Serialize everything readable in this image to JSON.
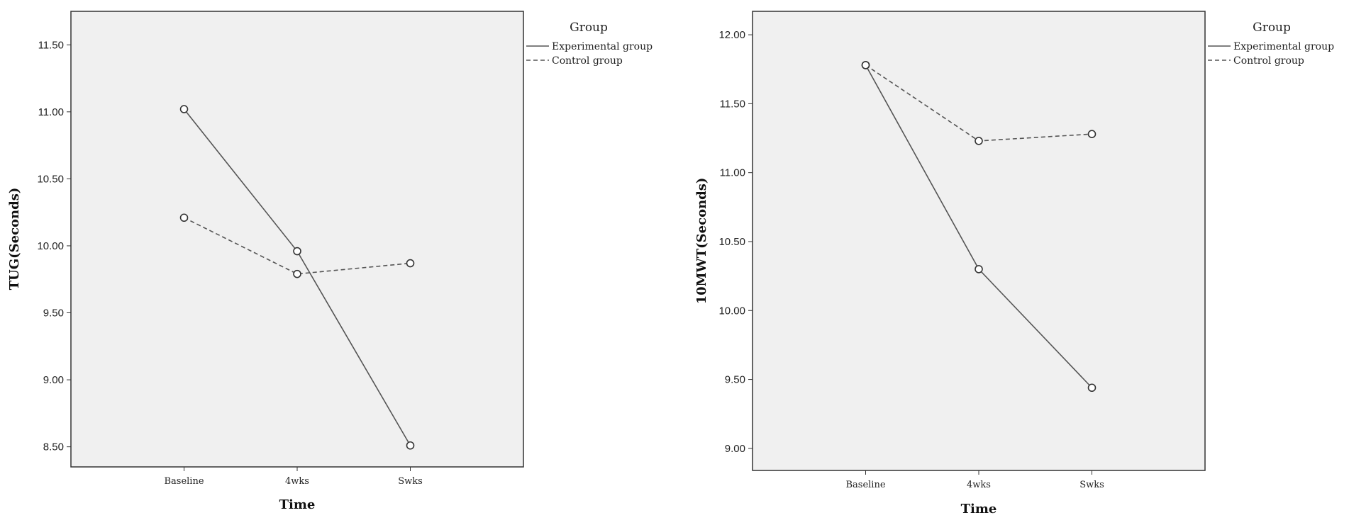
{
  "chart_data": [
    {
      "type": "line",
      "ylabel": "TUG(Seconds)",
      "xlabel": "Time",
      "categories": [
        "Baseline",
        "4wks",
        "Swks"
      ],
      "ylim": [
        8.35,
        11.75
      ],
      "yticks": [
        "8.50",
        "9.00",
        "9.50",
        "10.00",
        "10.50",
        "11.00",
        "11.50"
      ],
      "legend": {
        "title": "Group",
        "position": "top-right, outside plot"
      },
      "grid": false,
      "series": [
        {
          "name": "Experimental group",
          "style": "solid",
          "values": [
            11.02,
            9.96,
            8.51
          ]
        },
        {
          "name": "Control group",
          "style": "dashed",
          "values": [
            10.21,
            9.79,
            9.87
          ]
        }
      ]
    },
    {
      "type": "line",
      "ylabel": "10MWT(Seconds)",
      "xlabel": "Time",
      "categories": [
        "Baseline",
        "4wks",
        "Swks"
      ],
      "ylim": [
        8.84,
        12.17
      ],
      "yticks": [
        "9.00",
        "9.50",
        "10.00",
        "10.50",
        "11.00",
        "11.50",
        "12.00"
      ],
      "legend": {
        "title": "Group",
        "position": "top-right, outside plot"
      },
      "grid": false,
      "series": [
        {
          "name": "Experimental group",
          "style": "solid",
          "values": [
            11.78,
            10.3,
            9.44
          ]
        },
        {
          "name": "Control group",
          "style": "dashed",
          "values": [
            11.78,
            11.23,
            11.28
          ]
        }
      ]
    }
  ]
}
